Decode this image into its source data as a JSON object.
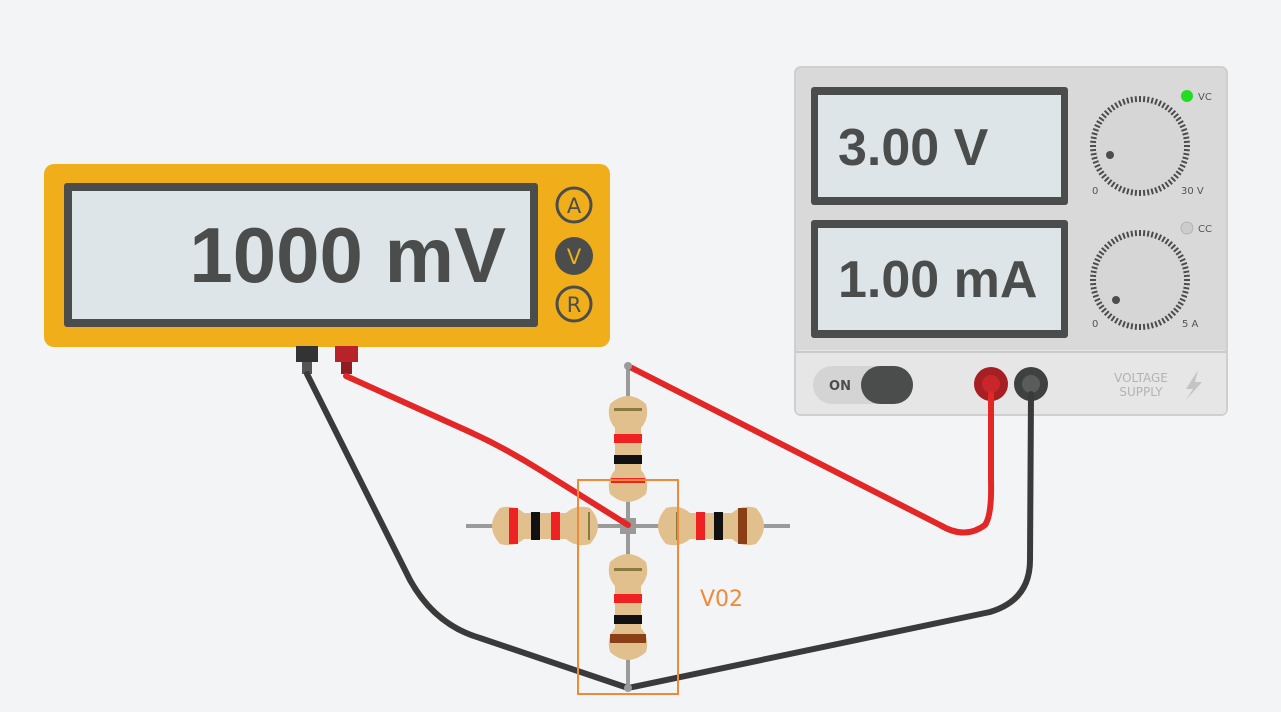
{
  "multimeter": {
    "display": "1000 mV",
    "modes": [
      {
        "label": "A",
        "active": false
      },
      {
        "label": "V",
        "active": true
      },
      {
        "label": "R",
        "active": false
      }
    ],
    "body_color": "#f0ae1a",
    "screen_color": "#dde5e8"
  },
  "power_supply": {
    "voltage_display": "3.00 V",
    "current_display": "1.00 mA",
    "voltage_knob": {
      "min_label": "0",
      "max_label": "30 V",
      "indicator": "VC",
      "indicator_on": true
    },
    "current_knob": {
      "min_label": "0",
      "max_label": "5 A",
      "indicator": "CC",
      "indicator_on": false
    },
    "power_toggle_label": "ON",
    "brand_line1": "VOLTAGE",
    "brand_line2": "SUPPLY",
    "led_on_color": "#22dd22",
    "led_off_color": "#cccccc"
  },
  "selection": {
    "label": "V02",
    "color": "#f08a3a"
  },
  "wires": {
    "red": "#e32626",
    "black": "#3a3a3a"
  },
  "resistor": {
    "body_color": "#e2c08d",
    "lead_color": "#9a9a9a"
  }
}
